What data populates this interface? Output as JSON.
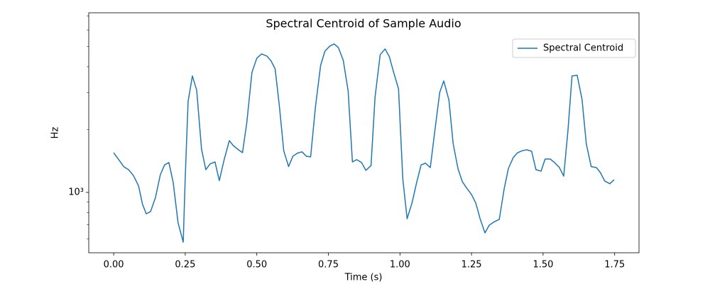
{
  "chart_data": {
    "type": "line",
    "title": "Spectral Centroid of Sample Audio",
    "xlabel": "Time (s)",
    "ylabel": "Hz",
    "x": [
      0,
      0.035,
      0.052,
      0.069,
      0.087,
      0.101,
      0.114,
      0.129,
      0.146,
      0.163,
      0.178,
      0.193,
      0.208,
      0.225,
      0.243,
      0.25,
      0.26,
      0.275,
      0.29,
      0.307,
      0.322,
      0.337,
      0.354,
      0.369,
      0.386,
      0.404,
      0.418,
      0.436,
      0.45,
      0.465,
      0.483,
      0.5,
      0.517,
      0.535,
      0.55,
      0.564,
      0.579,
      0.594,
      0.611,
      0.626,
      0.641,
      0.658,
      0.673,
      0.688,
      0.705,
      0.723,
      0.738,
      0.755,
      0.77,
      0.785,
      0.802,
      0.819,
      0.834,
      0.849,
      0.866,
      0.881,
      0.899,
      0.913,
      0.931,
      0.948,
      0.963,
      0.978,
      0.995,
      1.01,
      1.025,
      1.042,
      1.059,
      1.074,
      1.089,
      1.106,
      1.121,
      1.139,
      1.153,
      1.171,
      1.186,
      1.203,
      1.218,
      1.233,
      1.25,
      1.265,
      1.28,
      1.297,
      1.312,
      1.327,
      1.347,
      1.364,
      1.379,
      1.396,
      1.411,
      1.428,
      1.443,
      1.46,
      1.475,
      1.493,
      1.507,
      1.525,
      1.54,
      1.557,
      1.572,
      1.587,
      1.601,
      1.619,
      1.636,
      1.651,
      1.668,
      1.686,
      1.7,
      1.715,
      1.733,
      1.748
    ],
    "series": [
      {
        "name": "Spectral Centroid",
        "color": "#1f77b4",
        "values": [
          1550,
          1330,
          1285,
          1205,
          1075,
          875,
          790,
          810,
          945,
          1215,
          1355,
          1390,
          1115,
          715,
          578,
          1180,
          2725,
          3610,
          3090,
          1610,
          1285,
          1370,
          1400,
          1140,
          1435,
          1770,
          1675,
          1600,
          1550,
          2155,
          3755,
          4395,
          4605,
          4500,
          4260,
          3905,
          2580,
          1585,
          1330,
          1490,
          1540,
          1565,
          1490,
          1480,
          2580,
          4065,
          4750,
          5020,
          5140,
          4940,
          4290,
          3065,
          1400,
          1435,
          1390,
          1275,
          1345,
          2855,
          4570,
          4865,
          4465,
          3755,
          3140,
          1160,
          748,
          889,
          1125,
          1355,
          1380,
          1315,
          1930,
          3015,
          3420,
          2770,
          1705,
          1295,
          1125,
          1050,
          977,
          889,
          748,
          640,
          697,
          720,
          743,
          1040,
          1305,
          1470,
          1550,
          1585,
          1600,
          1575,
          1285,
          1265,
          1445,
          1445,
          1390,
          1315,
          1197,
          1990,
          3610,
          3640,
          2790,
          1705,
          1330,
          1315,
          1245,
          1135,
          1100,
          1150
        ]
      }
    ],
    "xlim": [
      -0.087,
      1.835
    ],
    "xticks": [
      {
        "value": 0,
        "label": "0.00"
      },
      {
        "value": 0.25,
        "label": "0.25"
      },
      {
        "value": 0.5,
        "label": "0.50"
      },
      {
        "value": 0.75,
        "label": "0.75"
      },
      {
        "value": 1,
        "label": "1.00"
      },
      {
        "value": 1.25,
        "label": "1.25"
      },
      {
        "value": 1.5,
        "label": "1.50"
      },
      {
        "value": 1.75,
        "label": "1.75"
      }
    ],
    "ylim": [
      514,
      7250
    ],
    "yscale": "log",
    "yticks": [
      {
        "value": 1000,
        "label": "10³"
      }
    ],
    "yminorticks": [
      600,
      700,
      800,
      900,
      2000,
      3000,
      4000,
      5000,
      6000,
      7000
    ],
    "legend": "upper right",
    "grid": false
  }
}
